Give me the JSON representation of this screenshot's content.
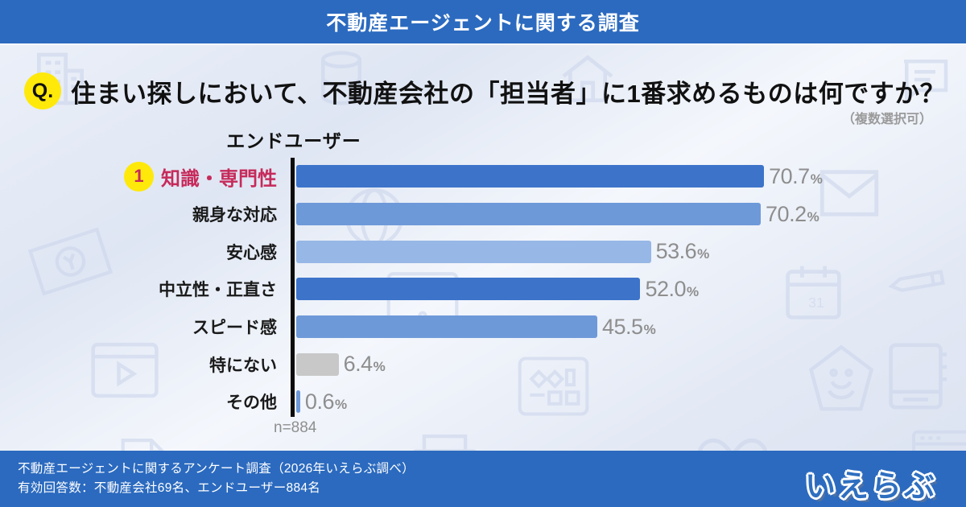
{
  "header": {
    "title": "不動産エージェントに関する調査"
  },
  "question": {
    "badge": "Q.",
    "text": "住まい探しにおいて、不動産会社の「担当者」に1番求めるものは何ですか？",
    "note": "（複数選択可）"
  },
  "chart": {
    "group_label": "エンドユーザー",
    "rank1_badge": "1",
    "sample_note": "n=884"
  },
  "chart_data": {
    "type": "bar",
    "orientation": "horizontal",
    "title": "エンドユーザー",
    "categories": [
      "知識・専門性",
      "親身な対応",
      "安心感",
      "中立性・正直さ",
      "スピード感",
      "特にない",
      "その他"
    ],
    "values": [
      70.7,
      70.2,
      53.6,
      52.0,
      45.5,
      6.4,
      0.6
    ],
    "unit": "%",
    "xlim": [
      0,
      100
    ],
    "grid": false,
    "legend": false,
    "n": 884,
    "highlight_index": 0,
    "bar_colors": [
      "#3d74ca",
      "#6e99d9",
      "#97b7e6",
      "#3d74ca",
      "#6e99d9",
      "#c8c8c8",
      "#6e99d9"
    ]
  },
  "footer": {
    "line1": "不動産エージェントに関するアンケート調査（2026年いえらぶ調べ）",
    "line2": "有効回答数：不動産会社69名、エンドユーザー884名",
    "logo": "いえらぶ"
  },
  "colors": {
    "banner_blue": "#2b6abf",
    "highlight_red": "#c62a5a",
    "badge_yellow": "#ffe90a",
    "value_gray": "#8e8e8e",
    "axis_black": "#0c0c0c"
  }
}
